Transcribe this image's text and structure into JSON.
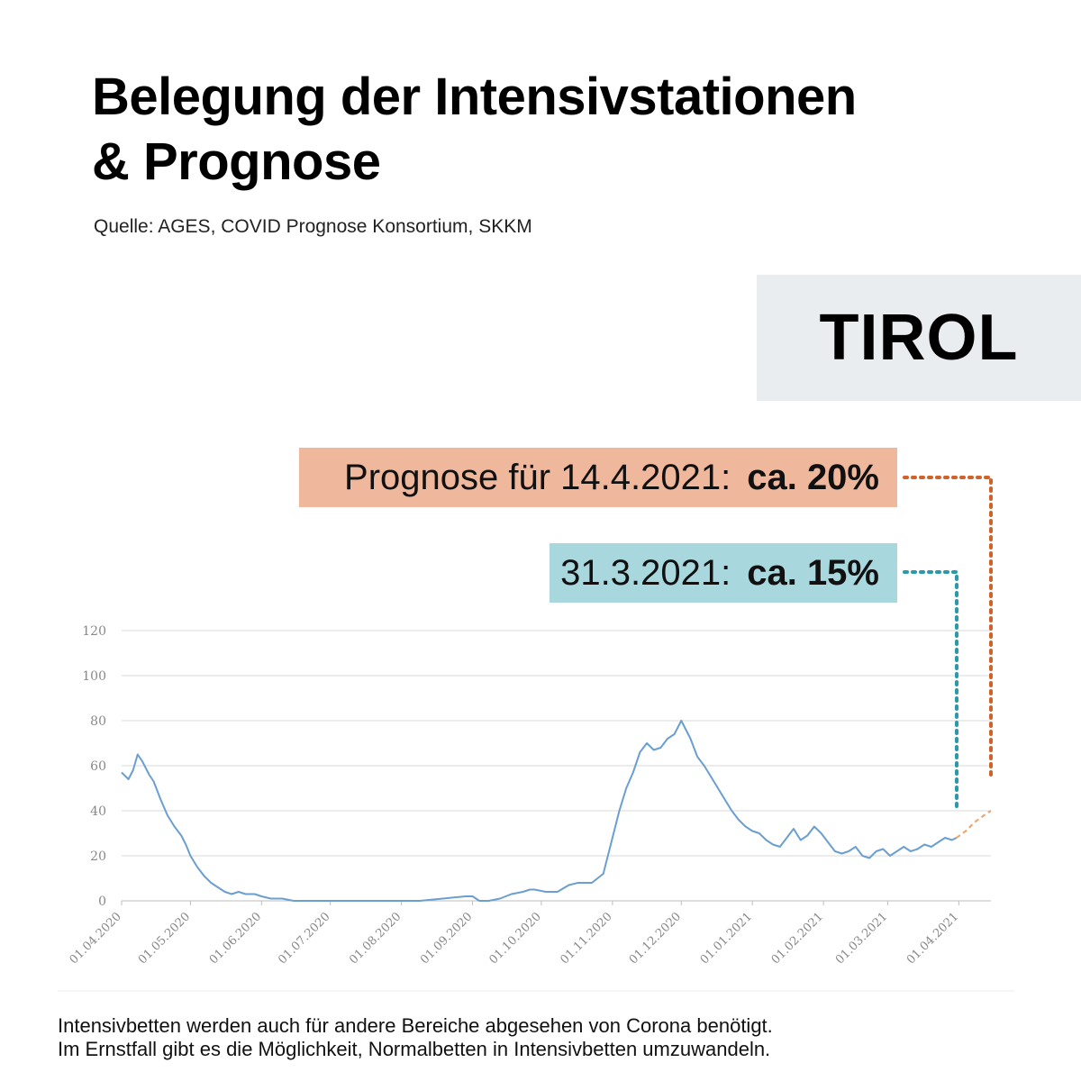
{
  "title_line1": "Belegung der Intensivstationen",
  "title_line2": "& Prognose",
  "source": "Quelle: AGES, COVID Prognose Konsortium, SKKM",
  "region": "TIROL",
  "forecast_badge": {
    "label": "Prognose für 14.4.2021:",
    "value": "ca. 20%"
  },
  "current_badge": {
    "label": "31.3.2021:",
    "value": "ca. 15%"
  },
  "footnote_line1": "Intensivbetten werden auch für andere Bereiche abgesehen von Corona benötigt.",
  "footnote_line2": "Im Ernstfall gibt es die Möglichkeit, Normalbetten in Intensivbetten umzuwandeln.",
  "colors": {
    "series": "#6a9fd0",
    "forecast": "#f0a060",
    "forecast_connector": "#d0622a",
    "current_connector": "#2b9aa8",
    "grid": "#d9d9d9",
    "tick": "#888888"
  },
  "chart_data": {
    "type": "line",
    "title": "",
    "xlabel": "",
    "ylabel": "",
    "ylim": [
      0,
      120
    ],
    "yticks": [
      0,
      20,
      40,
      60,
      80,
      100,
      120
    ],
    "xlim_days": [
      0,
      379
    ],
    "xtick_labels": [
      "01.04.2020",
      "01.05.2020",
      "01.06.2020",
      "01.07.2020",
      "01.08.2020",
      "01.09.2020",
      "01.10.2020",
      "01.11.2020",
      "01.12.2020",
      "01.01.2021",
      "01.02.2021",
      "01.03.2021",
      "01.04.2021"
    ],
    "xtick_days": [
      0,
      30,
      61,
      91,
      122,
      153,
      183,
      214,
      244,
      275,
      306,
      334,
      365
    ],
    "grid": true,
    "series": [
      {
        "name": "Belegung",
        "x_days": [
          0,
          3,
          5,
          7,
          9,
          12,
          14,
          17,
          20,
          23,
          26,
          28,
          30,
          33,
          36,
          39,
          42,
          45,
          48,
          51,
          54,
          58,
          61,
          65,
          70,
          75,
          80,
          85,
          90,
          95,
          100,
          110,
          120,
          130,
          140,
          150,
          153,
          156,
          160,
          165,
          170,
          175,
          178,
          180,
          185,
          190,
          195,
          199,
          200,
          205,
          210,
          212,
          214,
          217,
          220,
          223,
          226,
          229,
          232,
          235,
          238,
          241,
          244,
          246,
          248,
          251,
          254,
          257,
          260,
          263,
          266,
          269,
          272,
          275,
          278,
          281,
          284,
          287,
          290,
          293,
          296,
          299,
          302,
          305,
          308,
          311,
          314,
          317,
          320,
          323,
          326,
          329,
          332,
          335,
          338,
          341,
          344,
          347,
          350,
          353,
          356,
          359,
          362,
          364
        ],
        "values": [
          57,
          54,
          58,
          65,
          62,
          56,
          53,
          45,
          38,
          33,
          29,
          25,
          20,
          15,
          11,
          8,
          6,
          4,
          3,
          4,
          3,
          3,
          2,
          1,
          1,
          0,
          0,
          0,
          0,
          0,
          0,
          0,
          0,
          0,
          1,
          2,
          2,
          0,
          0,
          1,
          3,
          4,
          5,
          5,
          4,
          4,
          7,
          8,
          8,
          8,
          12,
          20,
          28,
          40,
          50,
          57,
          66,
          70,
          67,
          68,
          72,
          74,
          80,
          76,
          72,
          64,
          60,
          55,
          50,
          45,
          40,
          36,
          33,
          31,
          30,
          27,
          25,
          24,
          28,
          32,
          27,
          29,
          33,
          30,
          26,
          22,
          21,
          22,
          24,
          20,
          19,
          22,
          23,
          20,
          22,
          24,
          22,
          23,
          25,
          24,
          26,
          28,
          27,
          28
        ]
      },
      {
        "name": "Prognose",
        "x_days": [
          364,
          368,
          372,
          376,
          379
        ],
        "values": [
          28,
          31,
          35,
          38,
          40
        ]
      }
    ]
  }
}
